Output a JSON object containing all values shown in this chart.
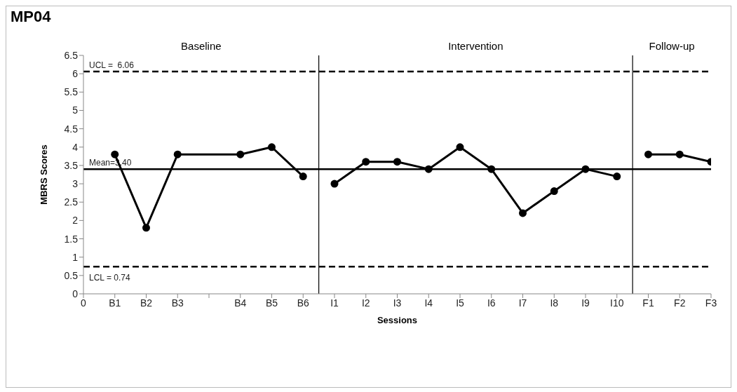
{
  "chart_data": {
    "type": "line",
    "title": "MP04",
    "xlabel": "Sessions",
    "ylabel": "MBRS Scores",
    "categories": [
      "0",
      "B1",
      "B2",
      "B3",
      null,
      "B4",
      "B5",
      "B6",
      "I1",
      "I2",
      "I3",
      "I4",
      "I5",
      "I6",
      "I7",
      "I8",
      "I9",
      "I10",
      "F1",
      "F2",
      "F3"
    ],
    "ylim": [
      0,
      6.5
    ],
    "yticks": [
      0,
      0.5,
      1,
      1.5,
      2,
      2.5,
      3,
      3.5,
      4,
      4.5,
      5,
      5.5,
      6,
      6.5
    ],
    "series": [
      {
        "color": "#000000",
        "values": [
          null,
          3.8,
          1.8,
          3.8,
          null,
          3.8,
          4.0,
          3.2,
          null,
          null,
          null,
          null,
          null,
          null,
          null,
          null,
          null,
          null,
          null,
          null,
          null
        ]
      },
      {
        "color": "#000000",
        "values": [
          null,
          null,
          null,
          null,
          null,
          null,
          null,
          null,
          3.0,
          3.6,
          3.6,
          3.4,
          4.0,
          3.4,
          2.2,
          2.8,
          3.4,
          3.2,
          null,
          null,
          null
        ]
      },
      {
        "color": "#000000",
        "values": [
          null,
          null,
          null,
          null,
          null,
          null,
          null,
          null,
          null,
          null,
          null,
          null,
          null,
          null,
          null,
          null,
          null,
          null,
          3.8,
          3.8,
          3.6
        ]
      }
    ],
    "ref_lines": [
      {
        "axis": "y",
        "value": 6.06,
        "label": "UCL =  6.06",
        "color": "#000000",
        "line_style": "dashed"
      },
      {
        "axis": "y",
        "value": 3.4,
        "label": "Mean=3.40",
        "color": "#000000",
        "line_style": "solid"
      },
      {
        "axis": "y",
        "value": 0.74,
        "label": "LCL = 0.74",
        "color": "#000000",
        "line_style": "dashed"
      }
    ],
    "annotations": [
      "Baseline",
      "Intervention",
      "Follow-up"
    ],
    "grid": false,
    "marker": "circle",
    "line_style": "solid"
  }
}
